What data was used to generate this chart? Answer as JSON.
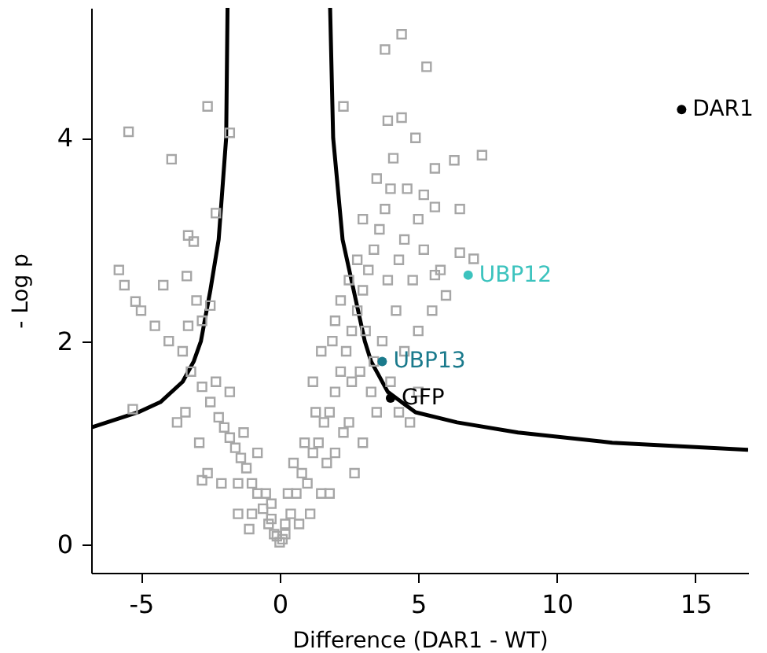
{
  "chart_data": {
    "type": "scatter",
    "xlabel": "Difference (DAR1 - WT)",
    "ylabel": "- Log p",
    "xlim": [
      -6.8,
      16.9
    ],
    "ylim": [
      -0.28,
      5.28
    ],
    "xticks": [
      -5,
      0,
      5,
      10,
      15
    ],
    "yticks": [
      0,
      2,
      4
    ],
    "grid": false,
    "series": [
      {
        "color": "#a6a6a6",
        "marker": "square",
        "x": [
          -5.45,
          -2.6,
          -1.8,
          -3.9,
          -2.3,
          -3.3,
          -3.1,
          -5.8,
          -5.6,
          -5.2,
          -3.35,
          2.3,
          3.8,
          4.4,
          5.3,
          3.9,
          6.3,
          7.3,
          6.5,
          5.6,
          5.2,
          6.5,
          7.0,
          5.6,
          6.0,
          -0.2,
          -0.4,
          -0.6,
          -0.8,
          -1.0,
          -1.2,
          -1.4,
          -1.6,
          -1.8,
          -2.0,
          -2.2,
          -2.5,
          -2.8,
          -3.2,
          -3.5,
          -4.0,
          -4.5,
          -5.0,
          -5.3,
          -3.7,
          -3.4,
          -2.9,
          -1.5,
          -1.0,
          -0.5,
          -0.8,
          -1.3,
          -1.8,
          -2.3,
          -1.5,
          -2.1,
          -2.6,
          -0.3,
          -1.1,
          -3.3,
          -2.8,
          -2.5,
          -3.0,
          -4.2,
          -2.8,
          0.2,
          0.4,
          0.6,
          0.8,
          1.0,
          1.2,
          1.4,
          1.6,
          1.8,
          2.0,
          2.2,
          2.4,
          2.6,
          2.8,
          3.0,
          3.2,
          3.4,
          3.6,
          3.8,
          4.0,
          1.5,
          2.0,
          2.5,
          3.0,
          3.5,
          4.0,
          4.5,
          5.0,
          5.5,
          4.2,
          4.8,
          5.2,
          3.7,
          2.9,
          3.3,
          2.3,
          1.7,
          1.1,
          0.7,
          0.3,
          2.7,
          4.5,
          4.1,
          3.5,
          4.6,
          5.0,
          3.0,
          2.5,
          2.2,
          1.9,
          2.8,
          4.3,
          3.9,
          3.1,
          5.6,
          4.9,
          4.4,
          5.8,
          3.4,
          4.3,
          5.0,
          4.7,
          2.0,
          1.5,
          1.2,
          2.6,
          1.8,
          0.9,
          0.5,
          1.3,
          0.0,
          0.1,
          -0.1,
          0.2,
          -0.3
        ],
        "values": [
          4.06,
          4.31,
          4.05,
          3.79,
          3.26,
          3.04,
          2.98,
          2.7,
          2.55,
          2.39,
          2.64,
          4.31,
          4.87,
          5.02,
          4.7,
          4.17,
          3.78,
          3.83,
          3.3,
          3.32,
          3.44,
          2.87,
          2.81,
          2.65,
          2.45,
          0.1,
          0.2,
          0.35,
          0.5,
          0.6,
          0.75,
          0.85,
          0.95,
          1.05,
          1.15,
          1.25,
          1.4,
          1.55,
          1.7,
          1.9,
          2.0,
          2.15,
          2.3,
          1.33,
          1.2,
          1.3,
          1.0,
          0.6,
          0.3,
          0.5,
          0.9,
          1.1,
          1.5,
          1.6,
          0.3,
          0.6,
          0.7,
          0.25,
          0.15,
          2.15,
          2.2,
          2.35,
          2.4,
          2.55,
          0.63,
          0.1,
          0.3,
          0.5,
          0.7,
          0.6,
          0.9,
          1.0,
          1.2,
          1.3,
          1.5,
          1.7,
          1.9,
          2.1,
          2.3,
          2.5,
          2.7,
          2.9,
          3.1,
          3.3,
          3.5,
          0.5,
          0.9,
          1.2,
          1.0,
          1.3,
          1.6,
          1.9,
          2.1,
          2.3,
          2.3,
          2.6,
          2.9,
          2.0,
          1.7,
          1.5,
          1.1,
          0.8,
          0.3,
          0.2,
          0.5,
          0.7,
          3.0,
          3.8,
          3.6,
          3.5,
          3.2,
          3.2,
          2.6,
          2.4,
          2.0,
          2.8,
          2.8,
          2.6,
          2.1,
          3.7,
          4.0,
          4.2,
          2.7,
          1.8,
          1.3,
          1.5,
          1.2,
          2.2,
          1.9,
          1.6,
          1.6,
          0.5,
          1.0,
          0.8,
          1.3,
          0.02,
          0.05,
          0.08,
          0.2,
          0.4
        ]
      },
      {
        "type": "line",
        "color": "#000000",
        "marker": "none",
        "x": [
          -1.88,
          -1.93,
          -2.2,
          -2.5,
          -2.84,
          -3.1,
          -3.5,
          -4.3,
          -5.1,
          -6.8
        ],
        "values": [
          5.28,
          4.0,
          3.0,
          2.5,
          2.0,
          1.8,
          1.6,
          1.4,
          1.3,
          1.15
        ]
      },
      {
        "type": "line",
        "color": "#000000",
        "marker": "none",
        "x": [
          1.82,
          1.93,
          2.27,
          2.67,
          3.07,
          3.3,
          3.9,
          4.9,
          6.4,
          8.6,
          12.0,
          16.9
        ],
        "values": [
          5.28,
          4.0,
          3.0,
          2.5,
          2.0,
          1.8,
          1.5,
          1.3,
          1.2,
          1.1,
          1.0,
          0.93
        ]
      },
      {
        "name": "DAR1",
        "color": "#000000",
        "marker": "circle",
        "x": [
          14.5
        ],
        "values": [
          4.28
        ]
      },
      {
        "name": "UBP12",
        "color": "#3cc3be",
        "marker": "circle",
        "x": [
          6.8
        ],
        "values": [
          2.65
        ]
      },
      {
        "name": "UBP13",
        "color": "#1a7a8c",
        "marker": "circle",
        "x": [
          3.7
        ],
        "values": [
          1.8
        ]
      },
      {
        "name": "GFP",
        "color": "#000000",
        "marker": "circle",
        "x": [
          4.0
        ],
        "values": [
          1.44
        ]
      }
    ]
  }
}
